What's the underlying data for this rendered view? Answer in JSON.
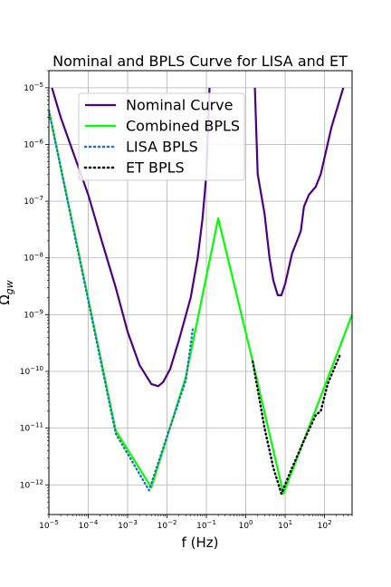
{
  "chart_data": {
    "type": "line",
    "title": "Nominal and BPLS Curve for LISA and ET",
    "xlabel": "f (Hz)",
    "ylabel": "Ω_gw",
    "xscale": "log",
    "yscale": "log",
    "xlim": [
      1e-05,
      500
    ],
    "ylim": [
      3e-13,
      2e-05
    ],
    "grid": true,
    "legend_position": "top-center",
    "xticks": [
      {
        "value": 1e-05,
        "base": "10",
        "exp": "−5"
      },
      {
        "value": 0.0001,
        "base": "10",
        "exp": "−4"
      },
      {
        "value": 0.001,
        "base": "10",
        "exp": "−3"
      },
      {
        "value": 0.01,
        "base": "10",
        "exp": "−2"
      },
      {
        "value": 0.1,
        "base": "10",
        "exp": "−1"
      },
      {
        "value": 1,
        "base": "10",
        "exp": "0"
      },
      {
        "value": 10,
        "base": "10",
        "exp": "1"
      },
      {
        "value": 100,
        "base": "10",
        "exp": "2"
      }
    ],
    "yticks": [
      {
        "value": 1e-12,
        "base": "10",
        "exp": "−12"
      },
      {
        "value": 1e-11,
        "base": "10",
        "exp": "−11"
      },
      {
        "value": 1e-10,
        "base": "10",
        "exp": "−10"
      },
      {
        "value": 1e-09,
        "base": "10",
        "exp": "−9"
      },
      {
        "value": 1e-08,
        "base": "10",
        "exp": "−8"
      },
      {
        "value": 1e-07,
        "base": "10",
        "exp": "−7"
      },
      {
        "value": 1e-06,
        "base": "10",
        "exp": "−6"
      },
      {
        "value": 1e-05,
        "base": "10",
        "exp": "−5"
      }
    ],
    "series": [
      {
        "name": "Nominal Curve",
        "color": "#4b0082",
        "style": "solid",
        "segments": [
          [
            [
              1.2e-05,
              1e-05
            ],
            [
              2e-05,
              3e-06
            ],
            [
              5e-05,
              5e-07
            ],
            [
              0.0001,
              1.3e-07
            ],
            [
              0.0002,
              2.5e-08
            ],
            [
              0.0005,
              3e-09
            ],
            [
              0.001,
              5e-10
            ],
            [
              0.002,
              1.3e-10
            ],
            [
              0.004,
              6e-11
            ],
            [
              0.006,
              5.5e-11
            ],
            [
              0.008,
              6.5e-11
            ],
            [
              0.012,
              1.1e-10
            ],
            [
              0.02,
              3.5e-10
            ],
            [
              0.04,
              2e-09
            ],
            [
              0.06,
              1e-08
            ],
            [
              0.08,
              5e-08
            ],
            [
              0.1,
              3e-07
            ],
            [
              0.12,
              1e-05
            ]
          ],
          [
            [
              1.7,
              1e-05
            ],
            [
              2,
              3e-07
            ],
            [
              3,
              6e-08
            ],
            [
              4,
              1e-08
            ],
            [
              5,
              4e-09
            ],
            [
              6.5,
              2.2e-09
            ],
            [
              8,
              2.2e-09
            ],
            [
              10,
              3.5e-09
            ],
            [
              15,
              1.2e-08
            ],
            [
              20,
              2e-08
            ],
            [
              25,
              3e-08
            ],
            [
              30,
              8e-08
            ],
            [
              40,
              1.3e-07
            ],
            [
              60,
              1.8e-07
            ],
            [
              80,
              3e-07
            ],
            [
              150,
              2e-06
            ],
            [
              300,
              1e-05
            ]
          ]
        ]
      },
      {
        "name": "Combined BPLS",
        "color": "#00ff00",
        "style": "solid",
        "segments": [
          [
            [
              1e-05,
              4e-06
            ],
            [
              0.0005,
              9e-12
            ],
            [
              0.004,
              9e-13
            ],
            [
              0.03,
              8e-11
            ],
            [
              0.2,
              5e-08
            ],
            [
              1.5,
              1.5e-10
            ],
            [
              9,
              7e-13
            ],
            [
              500,
              1e-09
            ]
          ]
        ]
      },
      {
        "name": "LISA BPLS",
        "color": "#1f77b4",
        "style": "dotted",
        "segments": [
          [
            [
              1e-05,
              4e-06
            ],
            [
              0.0005,
              8e-12
            ],
            [
              0.0035,
              8e-13
            ],
            [
              0.03,
              7e-11
            ],
            [
              0.045,
              5.5e-10
            ]
          ]
        ]
      },
      {
        "name": " ET BPLS",
        "color": "#000000",
        "style": "dotted",
        "segments": [
          [
            [
              1.5,
              1.5e-10
            ],
            [
              3,
              1e-11
            ],
            [
              5,
              2e-12
            ],
            [
              8,
              7e-13
            ],
            [
              15,
              2e-12
            ],
            [
              30,
              6e-12
            ],
            [
              60,
              1.7e-11
            ],
            [
              80,
              2e-11
            ],
            [
              120,
              6e-11
            ],
            [
              250,
              2e-10
            ]
          ]
        ]
      }
    ]
  }
}
